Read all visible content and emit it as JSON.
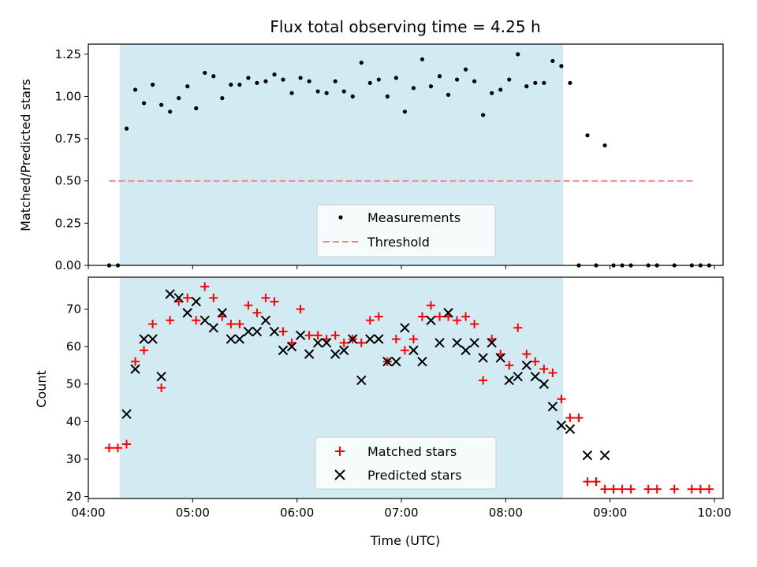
{
  "chart_data": {
    "title": "Flux total observing time = 4.25 h",
    "xlabel": "Time (UTC)",
    "x_domain": [
      "04:00",
      "10:05"
    ],
    "x_ticks": [
      "04:00",
      "05:00",
      "06:00",
      "07:00",
      "08:00",
      "09:00",
      "10:00"
    ],
    "shaded_interval": [
      "04:18",
      "08:33"
    ],
    "shade_color": "#add8e6",
    "panels": [
      {
        "type": "scatter",
        "ylabel": "Matched/Predicted stars",
        "ylim": [
          0,
          1.31
        ],
        "yticks": [
          "0.00",
          "0.25",
          "0.50",
          "0.75",
          "1.00",
          "1.25"
        ],
        "legend_position": "lower-center",
        "threshold": {
          "name": "Threshold",
          "value": 0.5,
          "x_range": [
            "04:12",
            "09:49"
          ],
          "color": "#ff8080"
        },
        "series": [
          {
            "name": "Measurements",
            "color": "#000000",
            "marker": "dot",
            "points": [
              [
                "04:12",
                0
              ],
              [
                "04:17",
                0
              ],
              [
                "04:22",
                0.81
              ],
              [
                "04:27",
                1.04
              ],
              [
                "04:32",
                0.96
              ],
              [
                "04:37",
                1.07
              ],
              [
                "04:42",
                0.95
              ],
              [
                "04:47",
                0.91
              ],
              [
                "04:52",
                0.99
              ],
              [
                "04:57",
                1.06
              ],
              [
                "05:02",
                0.93
              ],
              [
                "05:07",
                1.14
              ],
              [
                "05:12",
                1.12
              ],
              [
                "05:17",
                0.99
              ],
              [
                "05:22",
                1.07
              ],
              [
                "05:27",
                1.07
              ],
              [
                "05:32",
                1.11
              ],
              [
                "05:37",
                1.08
              ],
              [
                "05:42",
                1.09
              ],
              [
                "05:47",
                1.13
              ],
              [
                "05:52",
                1.1
              ],
              [
                "05:57",
                1.02
              ],
              [
                "06:02",
                1.11
              ],
              [
                "06:07",
                1.09
              ],
              [
                "06:12",
                1.03
              ],
              [
                "06:17",
                1.02
              ],
              [
                "06:22",
                1.09
              ],
              [
                "06:27",
                1.03
              ],
              [
                "06:32",
                1.0
              ],
              [
                "06:37",
                1.2
              ],
              [
                "06:42",
                1.08
              ],
              [
                "06:47",
                1.1
              ],
              [
                "06:52",
                1.0
              ],
              [
                "06:57",
                1.11
              ],
              [
                "07:02",
                0.91
              ],
              [
                "07:07",
                1.05
              ],
              [
                "07:12",
                1.22
              ],
              [
                "07:17",
                1.06
              ],
              [
                "07:22",
                1.12
              ],
              [
                "07:27",
                1.01
              ],
              [
                "07:32",
                1.1
              ],
              [
                "07:37",
                1.16
              ],
              [
                "07:42",
                1.09
              ],
              [
                "07:47",
                0.89
              ],
              [
                "07:52",
                1.02
              ],
              [
                "07:57",
                1.04
              ],
              [
                "08:02",
                1.1
              ],
              [
                "08:07",
                1.25
              ],
              [
                "08:12",
                1.06
              ],
              [
                "08:17",
                1.08
              ],
              [
                "08:22",
                1.08
              ],
              [
                "08:27",
                1.21
              ],
              [
                "08:32",
                1.18
              ],
              [
                "08:37",
                1.08
              ],
              [
                "08:42",
                0
              ],
              [
                "08:47",
                0.77
              ],
              [
                "08:52",
                0
              ],
              [
                "08:57",
                0.71
              ],
              [
                "09:02",
                0
              ],
              [
                "09:07",
                0
              ],
              [
                "09:12",
                0
              ],
              [
                "09:22",
                0
              ],
              [
                "09:27",
                0
              ],
              [
                "09:37",
                0
              ],
              [
                "09:47",
                0
              ],
              [
                "09:52",
                0
              ],
              [
                "09:57",
                0
              ]
            ]
          }
        ]
      },
      {
        "type": "scatter",
        "ylabel": "Count",
        "ylim": [
          19.5,
          78.5
        ],
        "yticks": [
          "20",
          "30",
          "40",
          "50",
          "60",
          "70"
        ],
        "legend_position": "lower-center",
        "series": [
          {
            "name": "Matched stars",
            "color": "#ff0000",
            "marker": "plus",
            "points": [
              [
                "04:12",
                33
              ],
              [
                "04:17",
                33
              ],
              [
                "04:22",
                34
              ],
              [
                "04:27",
                56
              ],
              [
                "04:32",
                59
              ],
              [
                "04:37",
                66
              ],
              [
                "04:42",
                49
              ],
              [
                "04:47",
                67
              ],
              [
                "04:52",
                72
              ],
              [
                "04:57",
                73
              ],
              [
                "05:02",
                67
              ],
              [
                "05:07",
                76
              ],
              [
                "05:12",
                73
              ],
              [
                "05:17",
                68
              ],
              [
                "05:22",
                66
              ],
              [
                "05:27",
                66
              ],
              [
                "05:32",
                71
              ],
              [
                "05:37",
                69
              ],
              [
                "05:42",
                73
              ],
              [
                "05:47",
                72
              ],
              [
                "05:52",
                64
              ],
              [
                "05:57",
                61
              ],
              [
                "06:02",
                70
              ],
              [
                "06:07",
                63
              ],
              [
                "06:12",
                63
              ],
              [
                "06:17",
                62
              ],
              [
                "06:22",
                63
              ],
              [
                "06:27",
                61
              ],
              [
                "06:32",
                62
              ],
              [
                "06:37",
                61
              ],
              [
                "06:42",
                67
              ],
              [
                "06:47",
                68
              ],
              [
                "06:52",
                56
              ],
              [
                "06:57",
                62
              ],
              [
                "07:02",
                59
              ],
              [
                "07:07",
                62
              ],
              [
                "07:12",
                68
              ],
              [
                "07:17",
                71
              ],
              [
                "07:22",
                68
              ],
              [
                "07:27",
                68
              ],
              [
                "07:32",
                67
              ],
              [
                "07:37",
                68
              ],
              [
                "07:42",
                66
              ],
              [
                "07:47",
                51
              ],
              [
                "07:52",
                62
              ],
              [
                "07:57",
                58
              ],
              [
                "08:02",
                55
              ],
              [
                "08:07",
                65
              ],
              [
                "08:12",
                58
              ],
              [
                "08:17",
                56
              ],
              [
                "08:22",
                54
              ],
              [
                "08:27",
                53
              ],
              [
                "08:32",
                46
              ],
              [
                "08:37",
                41
              ],
              [
                "08:42",
                41
              ],
              [
                "08:47",
                24
              ],
              [
                "08:52",
                24
              ],
              [
                "08:57",
                22
              ],
              [
                "09:02",
                22
              ],
              [
                "09:07",
                22
              ],
              [
                "09:12",
                22
              ],
              [
                "09:22",
                22
              ],
              [
                "09:27",
                22
              ],
              [
                "09:37",
                22
              ],
              [
                "09:47",
                22
              ],
              [
                "09:52",
                22
              ],
              [
                "09:57",
                22
              ]
            ]
          },
          {
            "name": "Predicted stars",
            "color": "#000000",
            "marker": "x",
            "points": [
              [
                "04:22",
                42
              ],
              [
                "04:27",
                54
              ],
              [
                "04:32",
                62
              ],
              [
                "04:37",
                62
              ],
              [
                "04:42",
                52
              ],
              [
                "04:47",
                74
              ],
              [
                "04:52",
                73
              ],
              [
                "04:57",
                69
              ],
              [
                "05:02",
                72
              ],
              [
                "05:07",
                67
              ],
              [
                "05:12",
                65
              ],
              [
                "05:17",
                69
              ],
              [
                "05:22",
                62
              ],
              [
                "05:27",
                62
              ],
              [
                "05:32",
                64
              ],
              [
                "05:37",
                64
              ],
              [
                "05:42",
                67
              ],
              [
                "05:47",
                64
              ],
              [
                "05:52",
                59
              ],
              [
                "05:57",
                60
              ],
              [
                "06:02",
                63
              ],
              [
                "06:07",
                58
              ],
              [
                "06:12",
                61
              ],
              [
                "06:17",
                61
              ],
              [
                "06:22",
                58
              ],
              [
                "06:27",
                59
              ],
              [
                "06:32",
                62
              ],
              [
                "06:37",
                51
              ],
              [
                "06:42",
                62
              ],
              [
                "06:47",
                62
              ],
              [
                "06:52",
                56
              ],
              [
                "06:57",
                56
              ],
              [
                "07:02",
                65
              ],
              [
                "07:07",
                59
              ],
              [
                "07:12",
                56
              ],
              [
                "07:17",
                67
              ],
              [
                "07:22",
                61
              ],
              [
                "07:27",
                69
              ],
              [
                "07:32",
                61
              ],
              [
                "07:37",
                59
              ],
              [
                "07:42",
                61
              ],
              [
                "07:47",
                57
              ],
              [
                "07:52",
                61
              ],
              [
                "07:57",
                57
              ],
              [
                "08:02",
                51
              ],
              [
                "08:07",
                52
              ],
              [
                "08:12",
                55
              ],
              [
                "08:17",
                52
              ],
              [
                "08:22",
                50
              ],
              [
                "08:27",
                44
              ],
              [
                "08:32",
                39
              ],
              [
                "08:37",
                38
              ],
              [
                "08:47",
                31
              ],
              [
                "08:57",
                31
              ]
            ]
          }
        ]
      }
    ]
  }
}
